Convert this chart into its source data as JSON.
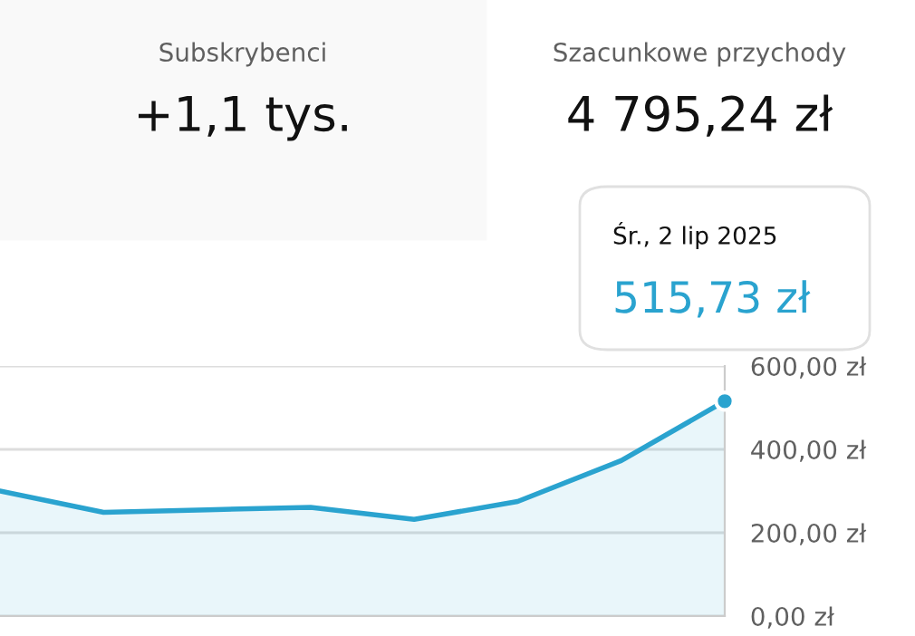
{
  "chart_data": {
    "type": "area",
    "categories": [
      null,
      null,
      null,
      null,
      null,
      null,
      null,
      null
    ],
    "series": [
      {
        "color": "#2aa3cf",
        "values": [
          300,
          249,
          255,
          261,
          232,
          275,
          373,
          515.73
        ]
      }
    ],
    "ylim": [
      0,
      600
    ],
    "yticks": [
      {
        "value": 0,
        "label": "0,00 zł"
      },
      {
        "value": 200,
        "label": "200,00 zł"
      },
      {
        "value": 400,
        "label": "400,00 zł"
      },
      {
        "value": 600,
        "label": "600,00 zł"
      }
    ],
    "grid": "y",
    "marker": "none",
    "tick_labels": "y",
    "annotations": [
      "Subskrybenci",
      "+1,1 tys.",
      "Szacunkowe przychody",
      "4 795,24 zł",
      "Śr., 2 lip 2025",
      "515,73 zł"
    ]
  }
}
